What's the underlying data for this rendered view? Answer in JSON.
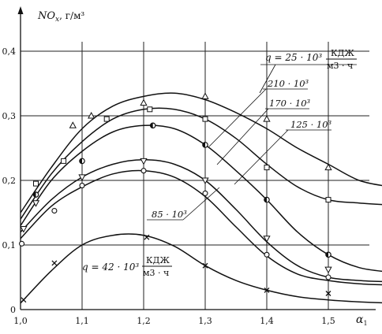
{
  "chart_data": {
    "type": "line",
    "ylabel_main": "NO",
    "ylabel_sub": "x",
    "ylabel_unit": ", г/м³",
    "xlabel_main": "α",
    "xlabel_sub": "1",
    "xlim": [
      1.0,
      1.5
    ],
    "ylim": [
      0,
      0.4
    ],
    "x_ticks": [
      "1,0",
      "1,1",
      "1,2",
      "1,3",
      "1,4",
      "1,5"
    ],
    "y_ticks": [
      "0",
      "0,1",
      "0,2",
      "0,3",
      "0,4"
    ],
    "grid": true,
    "annotations": {
      "q_prefix": "q = 25 · 10³",
      "q_bottom_prefix": "q = 42 · 10³",
      "unit_num": "КДЖ",
      "unit_den": "м3 · ч",
      "l210": "210 · 10³",
      "l170": "170 · 10³",
      "l125": "125 · 10³",
      "l85": "85 · 10³"
    },
    "series": [
      {
        "name": "25 · 10³",
        "marker": "triangle",
        "curve": [
          [
            1.0,
            0.15
          ],
          [
            1.05,
            0.22
          ],
          [
            1.1,
            0.28
          ],
          [
            1.15,
            0.315
          ],
          [
            1.2,
            0.33
          ],
          [
            1.25,
            0.335
          ],
          [
            1.3,
            0.325
          ],
          [
            1.35,
            0.305
          ],
          [
            1.4,
            0.28
          ],
          [
            1.45,
            0.25
          ],
          [
            1.5,
            0.225
          ],
          [
            1.55,
            0.2
          ],
          [
            1.6,
            0.19
          ]
        ],
        "points": [
          [
            1.085,
            0.285
          ],
          [
            1.115,
            0.3
          ],
          [
            1.2,
            0.32
          ],
          [
            1.3,
            0.33
          ],
          [
            1.4,
            0.295
          ],
          [
            1.5,
            0.22
          ]
        ]
      },
      {
        "name": "210 · 10³",
        "marker": "square",
        "curve": [
          [
            1.0,
            0.14
          ],
          [
            1.05,
            0.21
          ],
          [
            1.1,
            0.26
          ],
          [
            1.15,
            0.295
          ],
          [
            1.2,
            0.31
          ],
          [
            1.25,
            0.31
          ],
          [
            1.3,
            0.295
          ],
          [
            1.35,
            0.265
          ],
          [
            1.4,
            0.225
          ],
          [
            1.45,
            0.19
          ],
          [
            1.5,
            0.17
          ],
          [
            1.55,
            0.165
          ],
          [
            1.6,
            0.162
          ]
        ],
        "points": [
          [
            1.025,
            0.195
          ],
          [
            1.07,
            0.23
          ],
          [
            1.14,
            0.295
          ],
          [
            1.21,
            0.31
          ],
          [
            1.3,
            0.295
          ],
          [
            1.4,
            0.22
          ],
          [
            1.5,
            0.17
          ]
        ]
      },
      {
        "name": "170 · 10³",
        "marker": "circle",
        "curve": [
          [
            1.0,
            0.13
          ],
          [
            1.05,
            0.2
          ],
          [
            1.1,
            0.245
          ],
          [
            1.15,
            0.275
          ],
          [
            1.2,
            0.285
          ],
          [
            1.25,
            0.28
          ],
          [
            1.3,
            0.255
          ],
          [
            1.35,
            0.215
          ],
          [
            1.4,
            0.17
          ],
          [
            1.45,
            0.12
          ],
          [
            1.5,
            0.085
          ],
          [
            1.55,
            0.065
          ],
          [
            1.6,
            0.058
          ]
        ],
        "points": [
          [
            1.025,
            0.178
          ],
          [
            1.1,
            0.23
          ],
          [
            1.215,
            0.285
          ],
          [
            1.3,
            0.255
          ],
          [
            1.4,
            0.17
          ],
          [
            1.5,
            0.085
          ]
        ]
      },
      {
        "name": "125 · 10³",
        "marker": "triangle-down",
        "curve": [
          [
            1.0,
            0.12
          ],
          [
            1.05,
            0.17
          ],
          [
            1.1,
            0.205
          ],
          [
            1.15,
            0.225
          ],
          [
            1.2,
            0.232
          ],
          [
            1.25,
            0.225
          ],
          [
            1.3,
            0.2
          ],
          [
            1.35,
            0.155
          ],
          [
            1.4,
            0.105
          ],
          [
            1.45,
            0.068
          ],
          [
            1.5,
            0.05
          ],
          [
            1.55,
            0.045
          ],
          [
            1.6,
            0.043
          ]
        ],
        "points": [
          [
            1.005,
            0.125
          ],
          [
            1.025,
            0.165
          ],
          [
            1.1,
            0.205
          ],
          [
            1.2,
            0.23
          ],
          [
            1.3,
            0.2
          ],
          [
            1.4,
            0.11
          ],
          [
            1.5,
            0.062
          ]
        ]
      },
      {
        "name": "85 · 10³",
        "marker": "circle-small",
        "curve": [
          [
            1.0,
            0.11
          ],
          [
            1.05,
            0.16
          ],
          [
            1.1,
            0.19
          ],
          [
            1.15,
            0.21
          ],
          [
            1.2,
            0.215
          ],
          [
            1.25,
            0.205
          ],
          [
            1.3,
            0.175
          ],
          [
            1.35,
            0.128
          ],
          [
            1.4,
            0.083
          ],
          [
            1.45,
            0.055
          ],
          [
            1.5,
            0.045
          ],
          [
            1.55,
            0.04
          ],
          [
            1.6,
            0.038
          ]
        ],
        "points": [
          [
            1.002,
            0.102
          ],
          [
            1.055,
            0.153
          ],
          [
            1.1,
            0.192
          ],
          [
            1.2,
            0.215
          ],
          [
            1.3,
            0.18
          ],
          [
            1.4,
            0.085
          ],
          [
            1.5,
            0.05
          ]
        ]
      },
      {
        "name": "42 · 10³",
        "marker": "x",
        "curve": [
          [
            1.0,
            0.01
          ],
          [
            1.05,
            0.06
          ],
          [
            1.1,
            0.1
          ],
          [
            1.15,
            0.115
          ],
          [
            1.2,
            0.115
          ],
          [
            1.25,
            0.098
          ],
          [
            1.3,
            0.068
          ],
          [
            1.35,
            0.045
          ],
          [
            1.4,
            0.03
          ],
          [
            1.45,
            0.02
          ],
          [
            1.5,
            0.015
          ],
          [
            1.55,
            0.012
          ],
          [
            1.6,
            0.01
          ]
        ],
        "points": [
          [
            1.005,
            0.015
          ],
          [
            1.055,
            0.072
          ],
          [
            1.205,
            0.112
          ],
          [
            1.3,
            0.068
          ],
          [
            1.4,
            0.03
          ],
          [
            1.5,
            0.025
          ]
        ]
      }
    ]
  }
}
